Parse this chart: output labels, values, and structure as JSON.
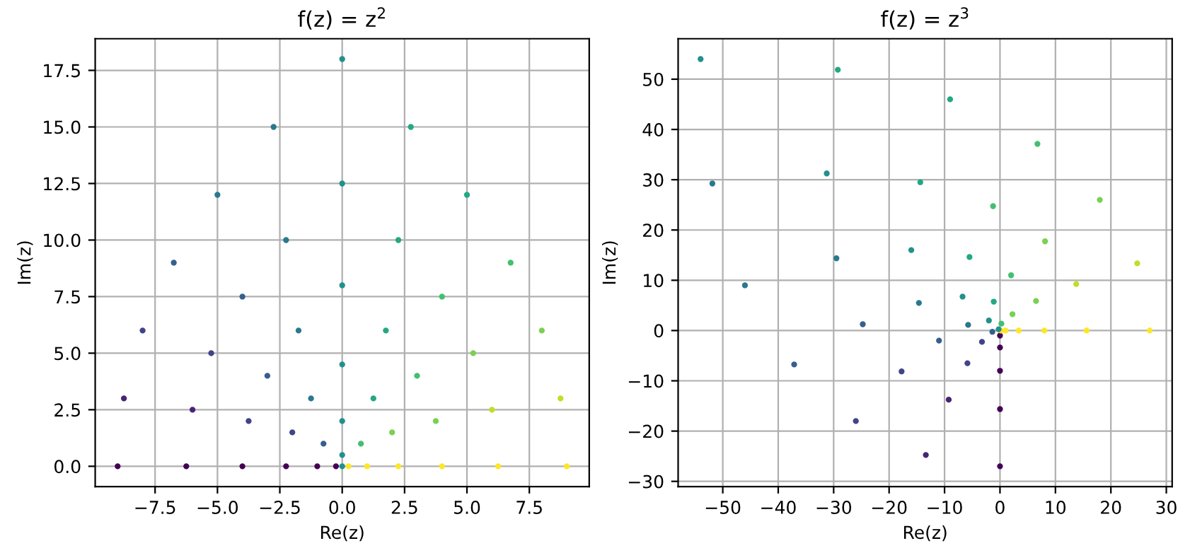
{
  "chart_data": [
    {
      "type": "scatter",
      "title": "f(z) = z$^{2}$",
      "xlabel": "Re(z)",
      "ylabel": "Im(z)",
      "grid": true,
      "marker": "circle",
      "xlim": [
        -9.9,
        9.9
      ],
      "ylim": [
        -0.9,
        18.9
      ],
      "xticks": [
        {
          "value": -7.5,
          "label": "−7.5"
        },
        {
          "value": -5,
          "label": "−5.0"
        },
        {
          "value": -2.5,
          "label": "−2.5"
        },
        {
          "value": 0,
          "label": "0.0"
        },
        {
          "value": 2.5,
          "label": "2.5"
        },
        {
          "value": 5,
          "label": "5.0"
        },
        {
          "value": 7.5,
          "label": "7.5"
        }
      ],
      "yticks": [
        {
          "value": 0,
          "label": "0.0"
        },
        {
          "value": 2.5,
          "label": "2.5"
        },
        {
          "value": 5,
          "label": "5.0"
        },
        {
          "value": 7.5,
          "label": "7.5"
        },
        {
          "value": 10,
          "label": "10.0"
        },
        {
          "value": 12.5,
          "label": "12.5"
        },
        {
          "value": 15,
          "label": "15.0"
        },
        {
          "value": 17.5,
          "label": "17.5"
        }
      ],
      "series": [
        {
          "x": [
            0,
            -0.25,
            -1,
            -2.25,
            -4,
            -6.25,
            -9,
            0.25,
            0,
            -0.75,
            -2,
            -3.75,
            -6,
            -8.75,
            1,
            0.75,
            0,
            -1.25,
            -3,
            -5.25,
            -8,
            2.25,
            2,
            1.25,
            0,
            -1.75,
            -4,
            -6.75,
            4,
            3.75,
            3,
            1.75,
            0,
            -2.25,
            -5,
            6.25,
            6,
            5.25,
            4,
            2.25,
            0,
            -2.75,
            9,
            8.75,
            8,
            6.75,
            5,
            2.75,
            0
          ],
          "values": [
            0,
            0,
            0,
            0,
            0,
            0,
            0,
            0,
            0.5,
            1,
            1.5,
            2,
            2.5,
            3,
            0,
            1,
            2,
            3,
            4,
            5,
            6,
            0,
            1.5,
            3,
            4.5,
            6,
            7.5,
            9,
            0,
            2,
            4,
            6,
            8,
            10,
            12,
            0,
            2.5,
            5,
            7.5,
            10,
            12.5,
            15,
            0,
            3,
            6,
            9,
            12,
            15,
            18
          ],
          "colors": [
            "#21918c",
            "#440154",
            "#440154",
            "#440154",
            "#440154",
            "#440154",
            "#440154",
            "#fde725",
            "#21918c",
            "#355f8d",
            "#414487",
            "#414487",
            "#482475",
            "#482475",
            "#fde725",
            "#44bf70",
            "#21918c",
            "#2a788e",
            "#355f8d",
            "#414487",
            "#414487",
            "#fde725",
            "#7ad151",
            "#22a884",
            "#21918c",
            "#2a788e",
            "#355f8d",
            "#355f8d",
            "#fde725",
            "#7ad151",
            "#44bf70",
            "#22a884",
            "#21918c",
            "#2a788e",
            "#2a788e",
            "#fde725",
            "#bddf26",
            "#7ad151",
            "#44bf70",
            "#22a884",
            "#21918c",
            "#2a788e",
            "#fde725",
            "#bddf26",
            "#7ad151",
            "#44bf70",
            "#22a884",
            "#22a884",
            "#21918c"
          ]
        }
      ]
    },
    {
      "type": "scatter",
      "title": "f(z) = z$^{3}$",
      "xlabel": "Re(z)",
      "ylabel": "Im(z)",
      "grid": true,
      "marker": "circle",
      "xlim": [
        -58.05,
        31.05
      ],
      "ylim": [
        -31.05,
        58.05
      ],
      "xticks": [
        {
          "value": -50,
          "label": "−50"
        },
        {
          "value": -40,
          "label": "−40"
        },
        {
          "value": -30,
          "label": "−30"
        },
        {
          "value": -20,
          "label": "−20"
        },
        {
          "value": -10,
          "label": "−10"
        },
        0,
        10,
        20,
        30
      ],
      "yticks": [
        {
          "value": -30,
          "label": "−30"
        },
        {
          "value": -20,
          "label": "−20"
        },
        {
          "value": -10,
          "label": "−10"
        },
        0,
        10,
        20,
        30,
        40,
        50
      ],
      "series": [
        {
          "x": [
            0,
            0,
            0,
            0,
            0,
            0.125,
            -0.25,
            -1.375,
            -3.25,
            -5.875,
            -9.25,
            -13.375,
            1,
            0.25,
            -2,
            -5.75,
            -11,
            -17.75,
            -26,
            3.375,
            2.25,
            -1.125,
            -6.75,
            -14.625,
            -24.75,
            -37.125,
            8,
            6.5,
            2,
            -5.5,
            -16,
            -29.5,
            -46,
            15.625,
            13.75,
            8.125,
            -1.25,
            -14.375,
            -31.25,
            -51.875,
            27,
            24.75,
            18,
            6.75,
            -9,
            -29.25,
            -54
          ],
          "values": [
            -1,
            -3.375,
            -8,
            -15.625,
            -27,
            0,
            0.25,
            -0.25,
            -2.25,
            -6.5,
            -13.75,
            -24.75,
            0,
            1.375,
            2,
            1.125,
            -2,
            -8.125,
            -18,
            0,
            3.25,
            5.75,
            6.75,
            5.5,
            1.25,
            -6.75,
            0,
            5.875,
            11,
            14.625,
            16,
            14.375,
            9,
            0,
            9.25,
            17.75,
            24.75,
            29.5,
            31.25,
            29.25,
            0,
            13.375,
            26,
            37.125,
            46,
            51.875,
            54
          ],
          "colors": [
            "#440154",
            "#440154",
            "#440154",
            "#440154",
            "#440154",
            "#fde725",
            "#21918c",
            "#355f8d",
            "#414487",
            "#414487",
            "#482475",
            "#482475",
            "#fde725",
            "#44bf70",
            "#21918c",
            "#2a788e",
            "#355f8d",
            "#414487",
            "#414487",
            "#fde725",
            "#7ad151",
            "#22a884",
            "#21918c",
            "#2a788e",
            "#355f8d",
            "#355f8d",
            "#fde725",
            "#7ad151",
            "#44bf70",
            "#22a884",
            "#21918c",
            "#2a788e",
            "#2a788e",
            "#fde725",
            "#bddf26",
            "#7ad151",
            "#44bf70",
            "#22a884",
            "#21918c",
            "#2a788e",
            "#fde725",
            "#bddf26",
            "#7ad151",
            "#44bf70",
            "#22a884",
            "#22a884",
            "#21918c"
          ]
        }
      ]
    }
  ]
}
